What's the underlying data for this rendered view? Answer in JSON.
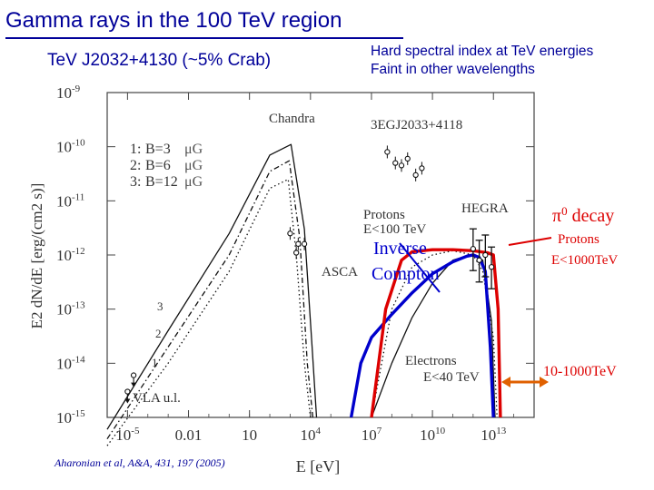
{
  "slide": {
    "title": "Gamma rays in the 100 TeV region",
    "subtitle": "TeV J2032+4130 (~5% Crab)",
    "notes": [
      "Hard spectral index at TeV energies",
      "Faint in other wavelengths"
    ],
    "citation": "Aharonian et al, A&A, 431, 197 (2005)"
  },
  "colors": {
    "title": "#000099",
    "electron_curve": "#0000cc",
    "proton_curve": "#dd0000",
    "arrow": "#e06000",
    "legend_unit": "#555555"
  },
  "chart_data": {
    "type": "line",
    "xscale": "log",
    "yscale": "log",
    "xlim": [
      1e-06,
      1000000000000000.0
    ],
    "ylim": [
      1e-15,
      1e-09
    ],
    "xlabel": "E [eV]",
    "ylabel": "E2 dN/dE [erg/(cm2 s)]",
    "x_tick_labels": [
      "10-5",
      "0.01",
      "10",
      "104",
      "107",
      "1010",
      "1013"
    ],
    "y_tick_labels": [
      "10-9",
      "10-10",
      "10-11",
      "10-12",
      "10-13",
      "10-14",
      "10-15"
    ],
    "legend": [
      {
        "index": "1:",
        "label": "B=3",
        "unit": "μG"
      },
      {
        "index": "2:",
        "label": "B=6",
        "unit": "μG"
      },
      {
        "index": "3:",
        "label": "B=12",
        "unit": "μG"
      }
    ],
    "series": [
      {
        "name": "1: B=3 μG",
        "curve": "synchrotron",
        "style": "dotted",
        "x": [
          1e-06,
          0.001,
          1,
          100,
          800,
          2000,
          5000,
          10000
        ],
        "y": [
          3e-16,
          1e-14,
          5e-13,
          1.7e-11,
          2.5e-11,
          1e-12,
          1e-14,
          1e-15
        ]
      },
      {
        "name": "2: B=6 μG",
        "curve": "synchrotron",
        "style": "dashdot",
        "x": [
          1e-06,
          0.001,
          1,
          100,
          900,
          3000,
          7000,
          13000
        ],
        "y": [
          4e-16,
          2e-14,
          1e-12,
          3.5e-11,
          5.5e-11,
          2e-12,
          1e-14,
          1e-15
        ]
      },
      {
        "name": "3: B=12 μG",
        "curve": "synchrotron",
        "style": "solid",
        "x": [
          1e-06,
          0.001,
          1,
          100,
          1100,
          5000,
          12000,
          20000
        ],
        "y": [
          6e-16,
          4e-14,
          2.5e-12,
          7e-11,
          1.1e-10,
          3e-12,
          2e-14,
          1e-15
        ]
      },
      {
        "name": "Protons E<100 TeV",
        "curve": "pi0 decay",
        "style": "dotted",
        "x": [
          10000000.0,
          100000000.0,
          1000000000.0,
          10000000000.0,
          100000000000.0,
          1000000000000.0,
          3000000000000.0,
          10000000000000.0,
          15000000000000.0
        ],
        "y": [
          1e-15,
          1e-13,
          6e-13,
          1e-12,
          1.2e-12,
          1e-12,
          5e-13,
          3e-14,
          1e-15
        ]
      },
      {
        "name": "Electrons E<40 TeV",
        "curve": "inverse Compton",
        "style": "solid",
        "x": [
          10000000.0,
          100000000.0,
          1000000000.0,
          10000000000.0,
          100000000000.0,
          1000000000000.0,
          3000000000000.0,
          8000000000000.0,
          12000000000000.0
        ],
        "y": [
          1e-15,
          1e-14,
          7e-14,
          3e-13,
          8e-13,
          1.05e-12,
          8e-13,
          6e-14,
          1e-15
        ]
      },
      {
        "name": "Inverse Compton",
        "curve": "highlight",
        "style": "bold",
        "color": "#0000cc",
        "x": [
          1000000.0,
          3000000.0,
          10000000.0,
          100000000.0,
          1000000000.0,
          10000000000.0,
          100000000000.0,
          500000000000.0,
          1000000000000.0,
          2000000000000.0,
          4000000000000.0,
          7000000000000.0,
          10000000000000.0
        ],
        "y": [
          1e-15,
          1e-14,
          3e-14,
          8e-14,
          2e-13,
          4.5e-13,
          7.5e-13,
          9.5e-13,
          1e-12,
          9e-13,
          5e-13,
          2e-14,
          1e-15
        ]
      },
      {
        "name": "Protons E<1000 TeV",
        "curve": "highlight",
        "style": "bold",
        "color": "#dd0000",
        "x": [
          10000000.0,
          50000000.0,
          300000000.0,
          1000000000.0,
          10000000000.0,
          100000000000.0,
          1000000000000.0,
          5000000000000.0,
          10000000000000.0,
          17000000000000.0,
          22000000000000.0
        ],
        "y": [
          1e-15,
          1e-13,
          8e-13,
          1.15e-12,
          1.25e-12,
          1.25e-12,
          1.2e-12,
          1.1e-12,
          1e-12,
          1e-13,
          1e-15
        ]
      }
    ],
    "data_points": {
      "3EGJ2033+4118": {
        "x": [
          60000000.0,
          150000000.0,
          300000000.0,
          600000000.0,
          1500000000.0,
          3000000000.0
        ],
        "y": [
          8e-11,
          5e-11,
          4.5e-11,
          6e-11,
          3e-11,
          4e-11
        ]
      },
      "ASCA": {
        "x": [
          2000,
          5000
        ],
        "y": [
          1.1e-12,
          1.6e-12
        ]
      },
      "Chandra": {
        "x": [
          1000,
          2500
        ],
        "y": [
          2.5e-12,
          1.6e-12
        ]
      },
      "HEGRA": {
        "x": [
          1000000000000.0,
          2000000000000.0,
          4000000000000.0,
          8000000000000.0
        ],
        "y": [
          1.3e-12,
          8e-13,
          1e-12,
          6e-13
        ]
      },
      "VLA u.l.": {
        "x": [
          1e-05,
          2e-05
        ],
        "y": [
          3e-15,
          6e-15
        ]
      }
    },
    "annotations": [
      {
        "text": "Chandra"
      },
      {
        "text": "3EGJ2033+4118"
      },
      {
        "text": "Protons"
      },
      {
        "text": "E<100 TeV"
      },
      {
        "text": "HEGRA"
      },
      {
        "text": "ASCA"
      },
      {
        "text": "Electrons"
      },
      {
        "text": "E<40 TeV"
      },
      {
        "text": "VLA u.l."
      },
      {
        "text": "Inverse"
      },
      {
        "text": "Compton"
      },
      {
        "text": "π0 decay"
      },
      {
        "text": "Protons"
      },
      {
        "text": "E<1000TeV"
      },
      {
        "text": "10-1000TeV"
      },
      {
        "text": "1"
      },
      {
        "text": "2"
      },
      {
        "text": "3"
      }
    ]
  }
}
